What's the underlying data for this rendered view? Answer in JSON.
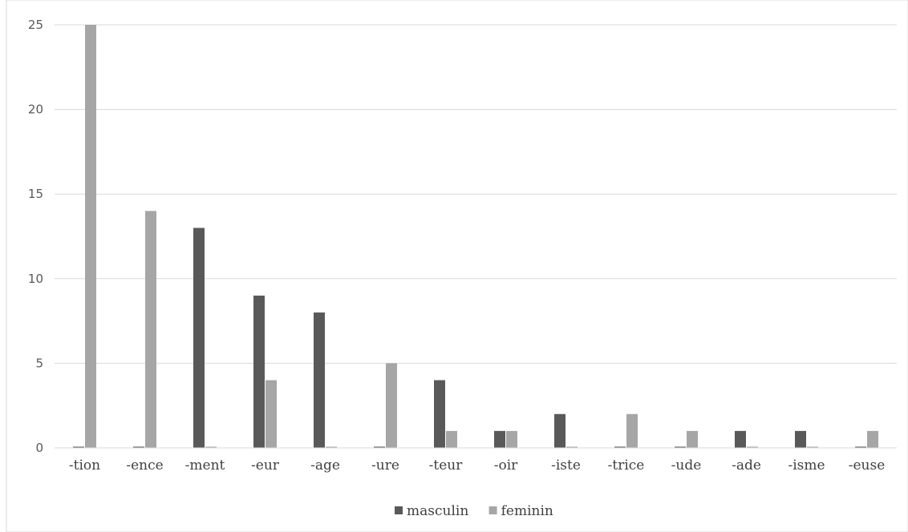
{
  "chart_data": {
    "type": "bar",
    "title": "",
    "xlabel": "",
    "ylabel": "",
    "categories": [
      "-tion",
      "-ence",
      "-ment",
      "-eur",
      "-age",
      "-ure",
      "-teur",
      "-oir",
      "-iste",
      "-trice",
      "-ude",
      "-ade",
      "-isme",
      "-euse"
    ],
    "series": [
      {
        "name": "masculin",
        "color": "#595959",
        "values": [
          0,
          0,
          13,
          9,
          8,
          0,
          4,
          1,
          2,
          0,
          0,
          1,
          1,
          0
        ]
      },
      {
        "name": "feminin",
        "color": "#a6a6a6",
        "values": [
          25,
          14,
          0,
          4,
          0,
          5,
          1,
          1,
          0,
          2,
          1,
          0,
          0,
          1
        ]
      }
    ],
    "ylim": [
      0,
      25
    ],
    "yticks": [
      0,
      5,
      10,
      15,
      20,
      25
    ],
    "grid": true,
    "legend_position": "bottom"
  }
}
